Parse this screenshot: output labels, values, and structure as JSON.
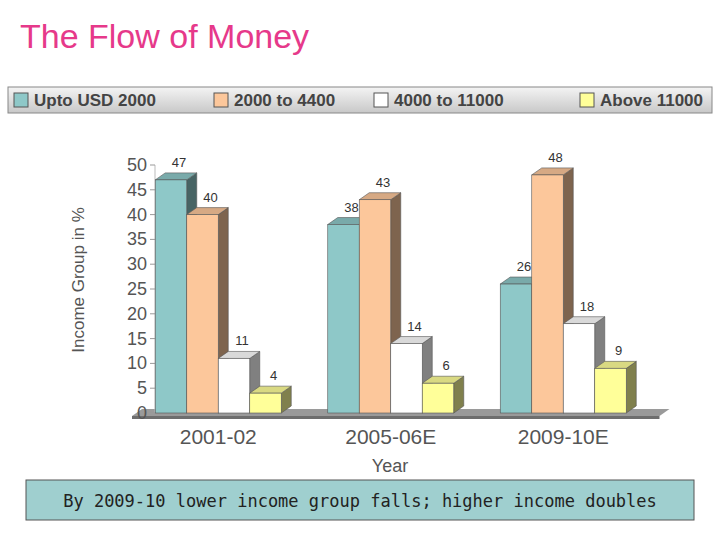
{
  "chart_data": {
    "type": "bar",
    "title": "The Flow of Money",
    "x_label": "Year",
    "y_label": "Income Group in %",
    "categories": [
      "2001-02",
      "2005-06E",
      "2009-10E"
    ],
    "series": [
      {
        "name": "Upto USD 2000",
        "color": "#8ec8c8",
        "values": [
          47,
          38,
          26
        ]
      },
      {
        "name": "2000 to 4400",
        "color": "#fcc79b",
        "values": [
          40,
          43,
          48
        ]
      },
      {
        "name": "4000 to 11000",
        "color": "#ffffff",
        "values": [
          11,
          14,
          18
        ]
      },
      {
        "name": "Above 11000",
        "color": "#ffff99",
        "values": [
          4,
          6,
          9
        ]
      }
    ],
    "ylim": [
      0,
      50
    ],
    "yticks": [
      0,
      5,
      10,
      15,
      20,
      25,
      30,
      35,
      40,
      45,
      50
    ],
    "grid": false,
    "legend": "top",
    "data_labels": true,
    "annotations": [
      "By 2009-10 lower income group falls; higher income doubles"
    ]
  }
}
